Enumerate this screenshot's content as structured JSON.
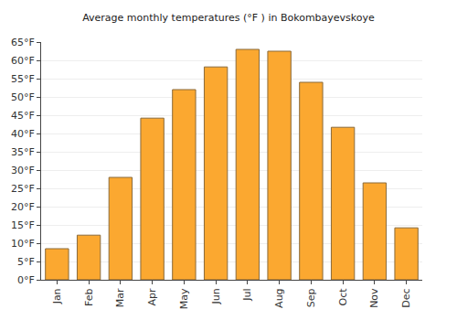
{
  "chart_data": {
    "type": "bar",
    "title": "Average monthly temperatures (°F ) in Bokombayevskoye",
    "categories": [
      "Jan",
      "Feb",
      "Mar",
      "Apr",
      "May",
      "Jun",
      "Jul",
      "Aug",
      "Sep",
      "Oct",
      "Nov",
      "Dec"
    ],
    "values": [
      8.5,
      12.2,
      28,
      44.2,
      52,
      58.2,
      63,
      62.5,
      54,
      41.7,
      26.5,
      14.2
    ],
    "color": "#fba830",
    "ylim": [
      0,
      65
    ],
    "yticks": [
      {
        "value": 0,
        "label": "0°F"
      },
      {
        "value": 5,
        "label": "5°F"
      },
      {
        "value": 10,
        "label": "10°F"
      },
      {
        "value": 15,
        "label": "15°F"
      },
      {
        "value": 20,
        "label": "20°F"
      },
      {
        "value": 25,
        "label": "25°F"
      },
      {
        "value": 30,
        "label": "30°F"
      },
      {
        "value": 35,
        "label": "35°F"
      },
      {
        "value": 40,
        "label": "40°F"
      },
      {
        "value": 45,
        "label": "45°F"
      },
      {
        "value": 50,
        "label": "50°F"
      },
      {
        "value": 55,
        "label": "55°F"
      },
      {
        "value": 60,
        "label": "60°F"
      },
      {
        "value": 65,
        "label": "65°F"
      }
    ],
    "grid": true
  }
}
